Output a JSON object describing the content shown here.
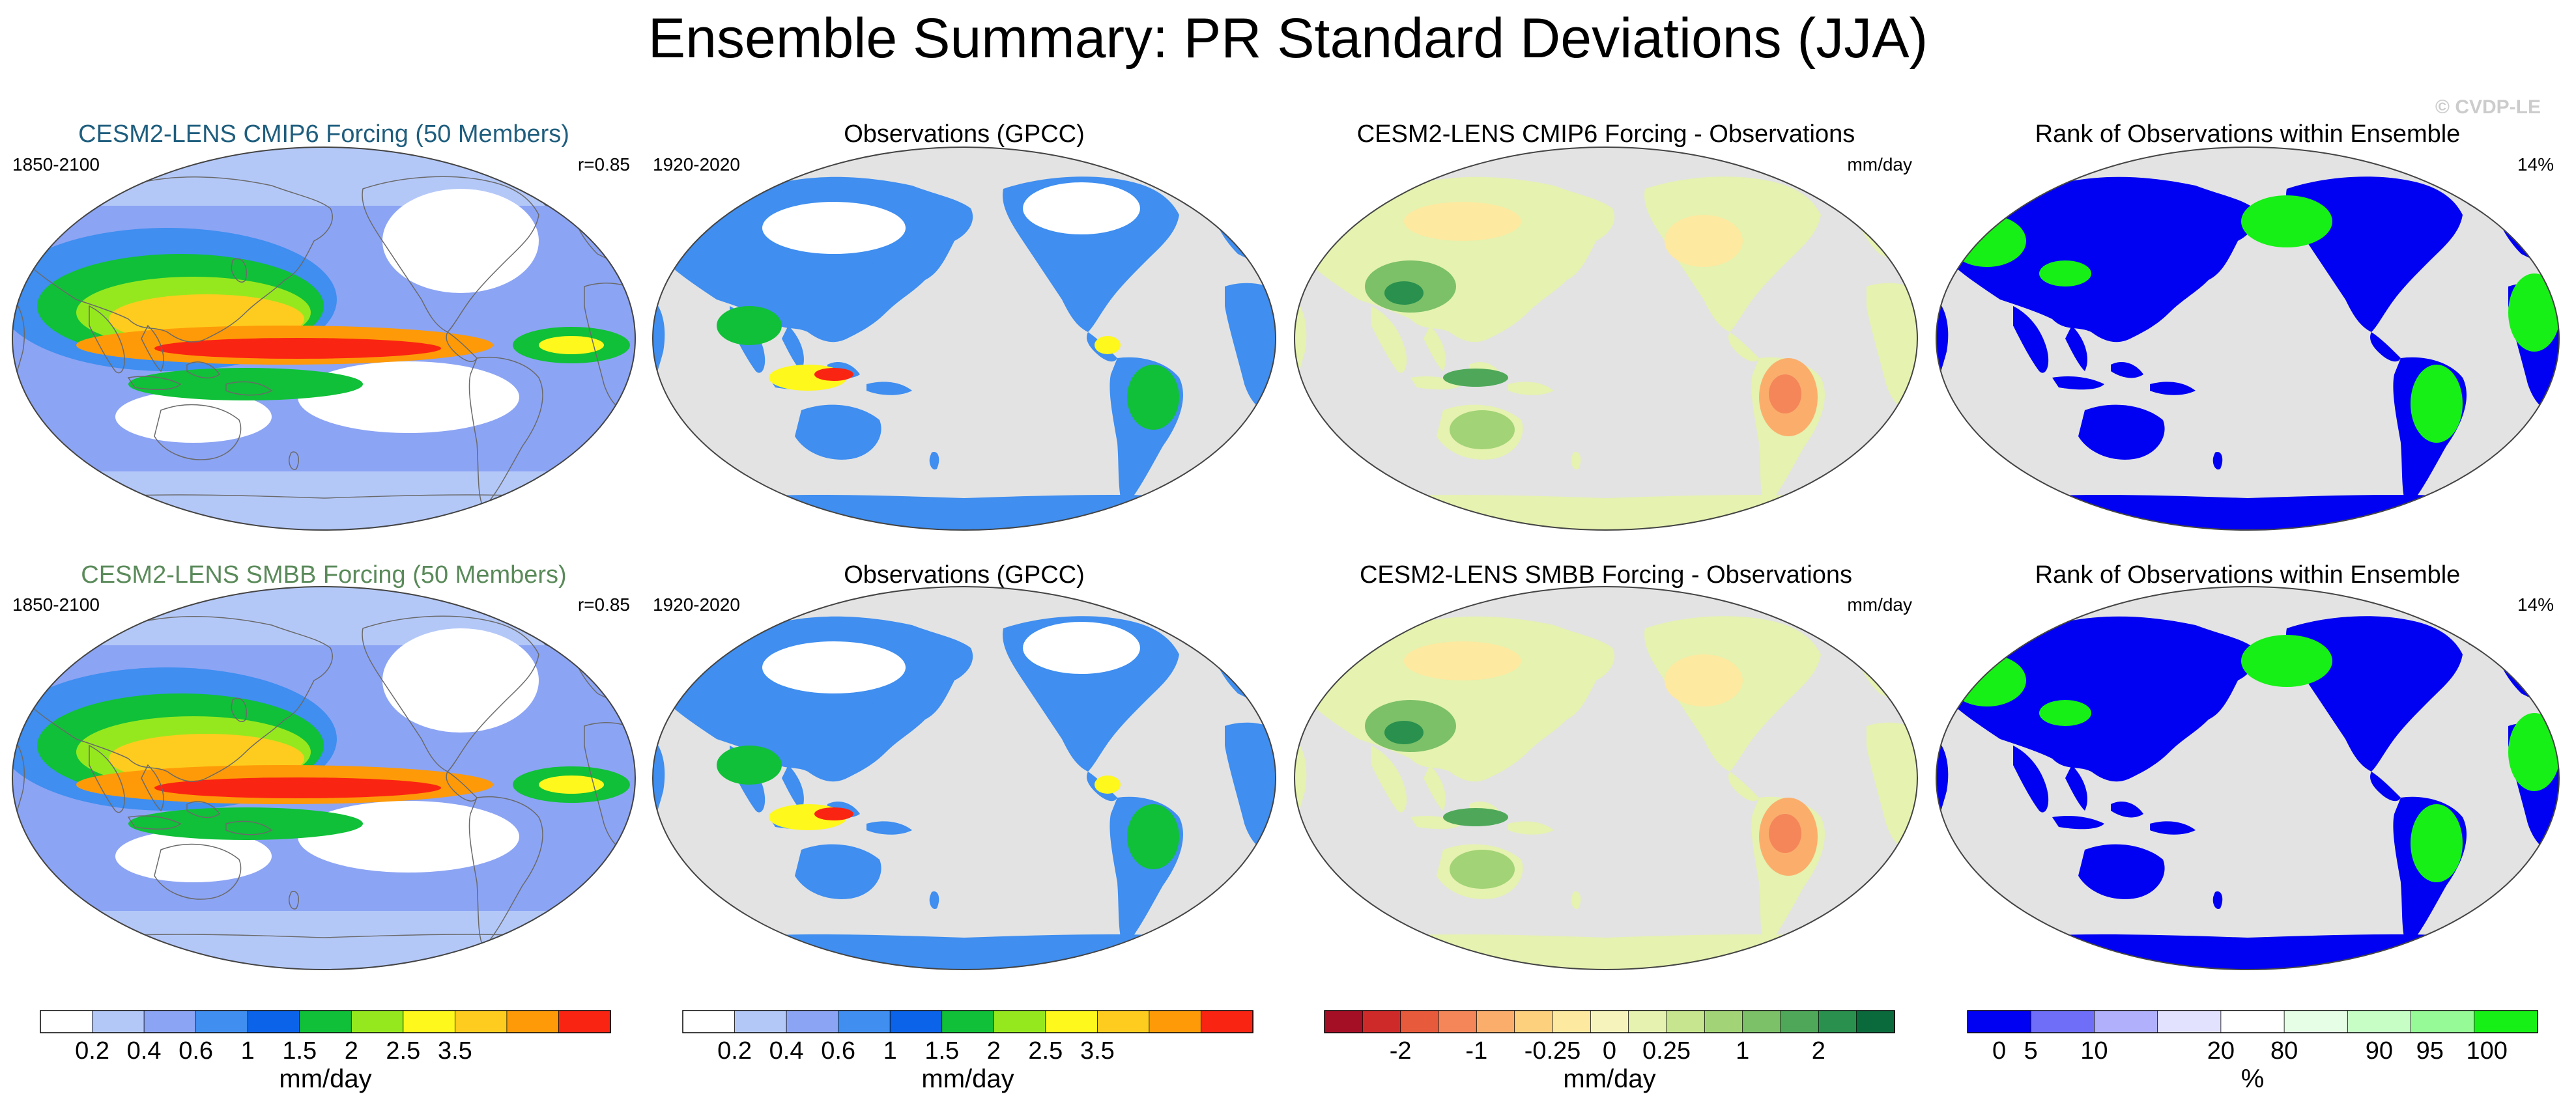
{
  "title": "Ensemble Summary: PR Standard Deviations (JJA)",
  "watermark": "© CVDP-LE",
  "colors": {
    "ocean_gray": "#e3e3e3",
    "land_outline": "#6a6a6a",
    "frame": "#444444",
    "title_row1_model": "#1f5e7e",
    "title_row2_model": "#5a8a5a",
    "watermark": "#cccccc"
  },
  "panels": [
    {
      "row": 0,
      "col": 0,
      "kind": "model-stddev",
      "title": "CESM2-LENS CMIP6 Forcing (50 Members)",
      "title_color": "#1f5e7e",
      "left_label": "1850-2100",
      "right_label": "r=0.85"
    },
    {
      "row": 0,
      "col": 1,
      "kind": "observations",
      "title": "Observations (GPCC)",
      "title_color": "#000000",
      "left_label": "1920-2020",
      "right_label": ""
    },
    {
      "row": 0,
      "col": 2,
      "kind": "difference",
      "title": "CESM2-LENS CMIP6 Forcing - Observations",
      "title_color": "#000000",
      "left_label": "",
      "right_label": "mm/day"
    },
    {
      "row": 0,
      "col": 3,
      "kind": "rank",
      "title": "Rank of Observations within Ensemble",
      "title_color": "#000000",
      "left_label": "",
      "right_label": "14%"
    },
    {
      "row": 1,
      "col": 0,
      "kind": "model-stddev",
      "title": "CESM2-LENS SMBB Forcing (50 Members)",
      "title_color": "#5a8a5a",
      "left_label": "1850-2100",
      "right_label": "r=0.85"
    },
    {
      "row": 1,
      "col": 1,
      "kind": "observations",
      "title": "Observations (GPCC)",
      "title_color": "#000000",
      "left_label": "1920-2020",
      "right_label": ""
    },
    {
      "row": 1,
      "col": 2,
      "kind": "difference",
      "title": "CESM2-LENS SMBB Forcing - Observations",
      "title_color": "#000000",
      "left_label": "",
      "right_label": "mm/day"
    },
    {
      "row": 1,
      "col": 3,
      "kind": "rank",
      "title": "Rank of Observations within Ensemble",
      "title_color": "#000000",
      "left_label": "",
      "right_label": "14%"
    }
  ],
  "colorbars": [
    {
      "id": "stddev-model",
      "unit": "mm/day",
      "colors": [
        "#ffffff",
        "#b4c8f8",
        "#8ca4f4",
        "#3f8ef0",
        "#0a63e8",
        "#10c038",
        "#96e81e",
        "#fef81c",
        "#fecc1e",
        "#fe9a08",
        "#fa2412"
      ],
      "ticks": [
        {
          "boundary": 1,
          "label": "0.2"
        },
        {
          "boundary": 2,
          "label": "0.4"
        },
        {
          "boundary": 3,
          "label": "0.6"
        },
        {
          "boundary": 4,
          "label": "1"
        },
        {
          "boundary": 5,
          "label": "1.5"
        },
        {
          "boundary": 6,
          "label": "2"
        },
        {
          "boundary": 7,
          "label": "2.5"
        },
        {
          "boundary": 8,
          "label": "3.5"
        }
      ]
    },
    {
      "id": "stddev-obs",
      "unit": "mm/day",
      "colors": [
        "#ffffff",
        "#b4c8f8",
        "#8ca4f4",
        "#3f8ef0",
        "#0a63e8",
        "#10c038",
        "#96e81e",
        "#fef81c",
        "#fecc1e",
        "#fe9a08",
        "#fa2412"
      ],
      "ticks": [
        {
          "boundary": 1,
          "label": "0.2"
        },
        {
          "boundary": 2,
          "label": "0.4"
        },
        {
          "boundary": 3,
          "label": "0.6"
        },
        {
          "boundary": 4,
          "label": "1"
        },
        {
          "boundary": 5,
          "label": "1.5"
        },
        {
          "boundary": 6,
          "label": "2"
        },
        {
          "boundary": 7,
          "label": "2.5"
        },
        {
          "boundary": 8,
          "label": "3.5"
        }
      ]
    },
    {
      "id": "difference",
      "unit": "mm/day",
      "colors": [
        "#a50f26",
        "#cf2a2a",
        "#e85a3c",
        "#f4865a",
        "#fbae6c",
        "#fdd07e",
        "#fde9a0",
        "#f6f4bc",
        "#e5f2b0",
        "#c6e58e",
        "#a2d376",
        "#7cc068",
        "#4fa85a",
        "#29904e",
        "#0b6a3c"
      ],
      "ticks": [
        {
          "boundary": 2,
          "label": "-2"
        },
        {
          "boundary": 4,
          "label": "-1"
        },
        {
          "boundary": 6,
          "label": "-0.25"
        },
        {
          "boundary": 7.5,
          "label": "0"
        },
        {
          "boundary": 9,
          "label": "0.25"
        },
        {
          "boundary": 11,
          "label": "1"
        },
        {
          "boundary": 13,
          "label": "2"
        }
      ]
    },
    {
      "id": "rank",
      "unit": "%",
      "colors": [
        "#0000f2",
        "#6e6ef8",
        "#b0b0fc",
        "#e2e2fe",
        "#ffffff",
        "#e6fee6",
        "#c6fec6",
        "#96fa96",
        "#16f016"
      ],
      "ticks": [
        {
          "boundary": 0.5,
          "label": "0"
        },
        {
          "boundary": 1,
          "label": "5"
        },
        {
          "boundary": 2,
          "label": "10"
        },
        {
          "boundary": 4,
          "label": "20"
        },
        {
          "boundary": 5,
          "label": "80"
        },
        {
          "boundary": 6.5,
          "label": "90"
        },
        {
          "boundary": 7.3,
          "label": "95"
        },
        {
          "boundary": 8.2,
          "label": "100"
        }
      ]
    }
  ]
}
